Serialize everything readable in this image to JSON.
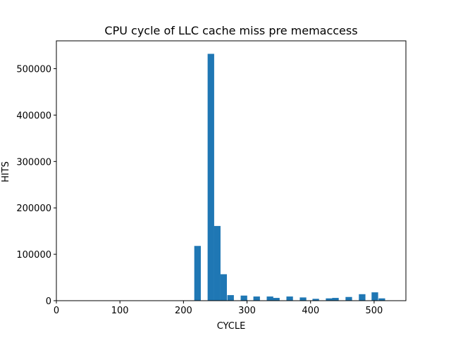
{
  "chart_data": {
    "type": "bar",
    "title": "CPU cycle of LLC cache miss pre memaccess",
    "xlabel": "CYCLE",
    "ylabel": "HITS",
    "xlim": [
      0,
      550
    ],
    "ylim": [
      0,
      560000
    ],
    "xticks": [
      0,
      100,
      200,
      300,
      400,
      500
    ],
    "yticks": [
      0,
      100000,
      200000,
      300000,
      400000,
      500000
    ],
    "grid": false,
    "bar_color": "#1f77b4",
    "bin_width": 10.3,
    "bins": [
      {
        "x": 217,
        "value": 118000
      },
      {
        "x": 238,
        "value": 532000
      },
      {
        "x": 248,
        "value": 161000
      },
      {
        "x": 258,
        "value": 57000
      },
      {
        "x": 269,
        "value": 12000
      },
      {
        "x": 290,
        "value": 11000
      },
      {
        "x": 310,
        "value": 9000
      },
      {
        "x": 331,
        "value": 9000
      },
      {
        "x": 341,
        "value": 6000
      },
      {
        "x": 362,
        "value": 9000
      },
      {
        "x": 383,
        "value": 7000
      },
      {
        "x": 403,
        "value": 4000
      },
      {
        "x": 424,
        "value": 5000
      },
      {
        "x": 434,
        "value": 6000
      },
      {
        "x": 455,
        "value": 8000
      },
      {
        "x": 476,
        "value": 14000
      },
      {
        "x": 496,
        "value": 18000
      },
      {
        "x": 507,
        "value": 5000
      }
    ]
  }
}
